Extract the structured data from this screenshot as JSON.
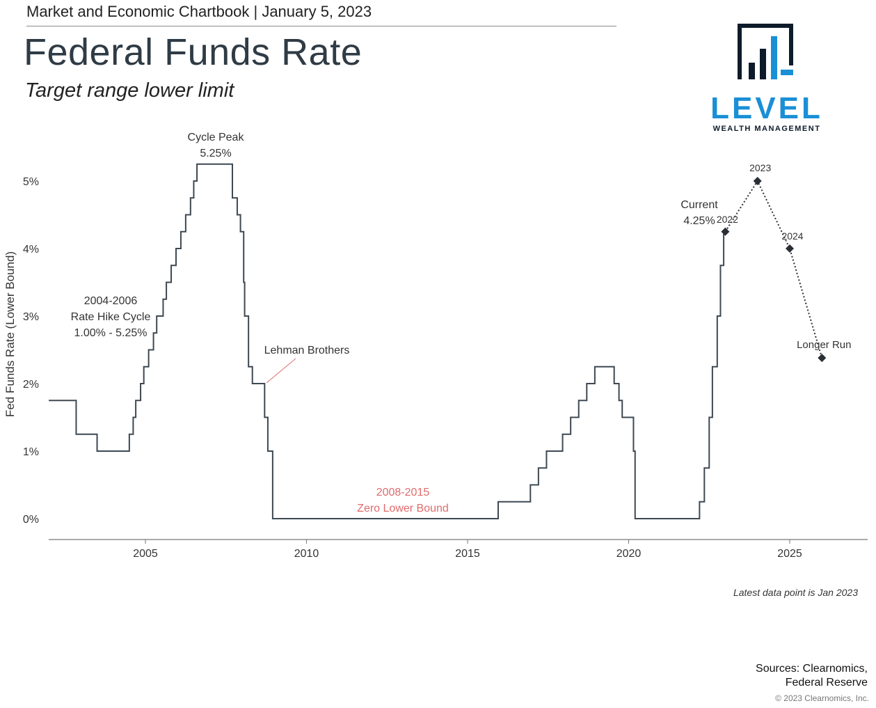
{
  "header": {
    "text": "Market and Economic Chartbook | January 5, 2023",
    "title": "Federal Funds Rate",
    "subtitle": "Target range lower limit"
  },
  "logo": {
    "name": "LEVEL",
    "tagline": "WEALTH MANAGEMENT",
    "colors": {
      "dark": "#0d1b2a",
      "blue": "#1a8fd6"
    }
  },
  "chart_data": {
    "type": "line",
    "title": "",
    "ylabel": "Fed Funds Rate (Lower Bound)",
    "xlabel": "",
    "xlim": [
      2002.0,
      2027.4
    ],
    "ylim": [
      -0.3,
      5.5
    ],
    "x_ticks": [
      2005,
      2010,
      2015,
      2020,
      2025
    ],
    "y_ticks": [
      0,
      1,
      2,
      3,
      4,
      5
    ],
    "y_tick_labels": [
      "0%",
      "1%",
      "2%",
      "3%",
      "4%",
      "5%"
    ],
    "grid": false,
    "legend": "none",
    "colors": {
      "historical": "#3d4852",
      "projection": "#2a2f36",
      "highlight": "#e06b6b",
      "annotation": "#333333"
    },
    "series": [
      {
        "style": "step",
        "points": [
          [
            2002.0,
            1.75
          ],
          [
            2002.85,
            1.25
          ],
          [
            2003.5,
            1.0
          ],
          [
            2004.5,
            1.25
          ],
          [
            2004.62,
            1.5
          ],
          [
            2004.7,
            1.75
          ],
          [
            2004.85,
            2.0
          ],
          [
            2004.95,
            2.25
          ],
          [
            2005.1,
            2.5
          ],
          [
            2005.25,
            2.75
          ],
          [
            2005.35,
            3.0
          ],
          [
            2005.55,
            3.25
          ],
          [
            2005.65,
            3.5
          ],
          [
            2005.8,
            3.75
          ],
          [
            2005.95,
            4.0
          ],
          [
            2006.1,
            4.25
          ],
          [
            2006.25,
            4.5
          ],
          [
            2006.4,
            4.75
          ],
          [
            2006.5,
            5.0
          ],
          [
            2006.6,
            5.25
          ],
          [
            2007.7,
            4.75
          ],
          [
            2007.85,
            4.5
          ],
          [
            2007.95,
            4.25
          ],
          [
            2008.05,
            3.5
          ],
          [
            2008.08,
            3.0
          ],
          [
            2008.2,
            2.25
          ],
          [
            2008.32,
            2.0
          ],
          [
            2008.7,
            1.5
          ],
          [
            2008.8,
            1.0
          ],
          [
            2008.95,
            0.0
          ],
          [
            2015.95,
            0.25
          ],
          [
            2016.95,
            0.5
          ],
          [
            2017.2,
            0.75
          ],
          [
            2017.45,
            1.0
          ],
          [
            2017.95,
            1.25
          ],
          [
            2018.2,
            1.5
          ],
          [
            2018.45,
            1.75
          ],
          [
            2018.7,
            2.0
          ],
          [
            2018.95,
            2.25
          ],
          [
            2019.55,
            2.0
          ],
          [
            2019.7,
            1.75
          ],
          [
            2019.8,
            1.5
          ],
          [
            2020.15,
            1.0
          ],
          [
            2020.2,
            0.0
          ],
          [
            2022.2,
            0.25
          ],
          [
            2022.35,
            0.75
          ],
          [
            2022.5,
            1.5
          ],
          [
            2022.6,
            2.25
          ],
          [
            2022.75,
            3.0
          ],
          [
            2022.85,
            3.75
          ],
          [
            2022.95,
            4.25
          ],
          [
            2023.0,
            4.25
          ]
        ]
      },
      {
        "style": "dotted",
        "labels": [
          "2022",
          "2023",
          "2024",
          "Longer Run"
        ],
        "x": [
          2023.0,
          2024.0,
          2025.0,
          2026.0
        ],
        "y": [
          4.25,
          5.0,
          4.0,
          2.38
        ]
      }
    ],
    "annotations": {
      "cycle": {
        "line1": "2004-2006",
        "line2": "Rate Hike Cycle",
        "line3": "1.00% - 5.25%"
      },
      "peak": {
        "line1": "Cycle Peak",
        "line2": "5.25%"
      },
      "lehman": {
        "text": "Lehman Brothers"
      },
      "zlb": {
        "line1": "2008-2015",
        "line2": "Zero Lower Bound"
      },
      "current": {
        "line1": "Current",
        "line2": "4.25%"
      }
    }
  },
  "footer": {
    "latest": "Latest data point is Jan 2023",
    "sources_line1": "Sources: Clearnomics,",
    "sources_line2": "Federal Reserve",
    "copyright": "© 2023 Clearnomics, Inc."
  }
}
